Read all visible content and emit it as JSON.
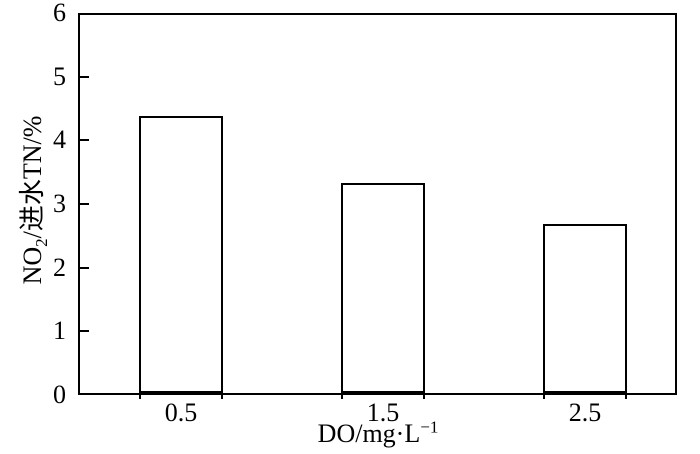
{
  "figure": {
    "background": "#ffffff",
    "line_color": "#000000"
  },
  "chart_data": {
    "type": "bar",
    "title": "",
    "categories": [
      "0.5",
      "1.5",
      "2.5"
    ],
    "values": [
      4.35,
      3.3,
      2.65
    ],
    "xlabel": "DO/mg·L⁻¹",
    "ylabel": "NO₂/进水TN/%",
    "xlabel_parts": {
      "prefix": "DO/mg·L",
      "sup": "−1"
    },
    "ylabel_parts": {
      "prefix": "NO",
      "sub": "2",
      "suffix": "/进水TN/%"
    },
    "ylim": [
      0,
      6
    ],
    "yticks": [
      "0",
      "1",
      "2",
      "3",
      "4",
      "5",
      "6"
    ],
    "grid": false,
    "legend": null,
    "bar_fill": "#ffffff",
    "bar_border": "#000000"
  }
}
